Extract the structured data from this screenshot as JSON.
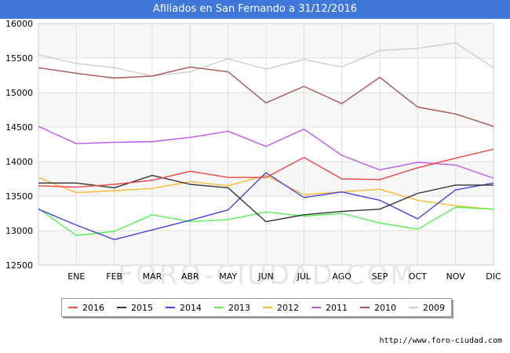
{
  "chart_data": {
    "type": "line",
    "title": "Afiliados en San Fernando a 31/12/2016",
    "xlabel": "",
    "ylabel": "",
    "categories": [
      "",
      "ENE",
      "FEB",
      "MAR",
      "ABR",
      "MAY",
      "JUN",
      "JUL",
      "AGO",
      "SEP",
      "OCT",
      "NOV",
      "DIC"
    ],
    "ylim": [
      12500,
      16000
    ],
    "yticks": [
      12500,
      13000,
      13500,
      14000,
      14500,
      15000,
      15500,
      16000
    ],
    "grid": true,
    "legend_position": "bottom",
    "series": [
      {
        "name": "2016",
        "color": "#ee4444",
        "values": [
          13650,
          13630,
          13670,
          13730,
          13860,
          13770,
          13770,
          14060,
          13750,
          13740,
          13910,
          14050,
          14180
        ]
      },
      {
        "name": "2015",
        "color": "#333333",
        "values": [
          13690,
          13690,
          13620,
          13800,
          13670,
          13620,
          13130,
          13230,
          13280,
          13310,
          13540,
          13660,
          13660
        ]
      },
      {
        "name": "2014",
        "color": "#4444dd",
        "values": [
          13310,
          13080,
          12870,
          13010,
          13150,
          13300,
          13840,
          13480,
          13560,
          13440,
          13170,
          13590,
          13690
        ]
      },
      {
        "name": "2013",
        "color": "#55ee55",
        "values": [
          13320,
          12930,
          12990,
          13230,
          13130,
          13160,
          13270,
          13210,
          13250,
          13110,
          13020,
          13340,
          13310
        ]
      },
      {
        "name": "2012",
        "color": "#ffb733",
        "values": [
          13770,
          13550,
          13580,
          13610,
          13710,
          13650,
          13800,
          13520,
          13560,
          13600,
          13440,
          13360,
          13310
        ]
      },
      {
        "name": "2011",
        "color": "#bb55ee",
        "values": [
          14510,
          14260,
          14280,
          14290,
          14350,
          14440,
          14220,
          14470,
          14090,
          13880,
          13990,
          13950,
          13760
        ]
      },
      {
        "name": "2010",
        "color": "#aa5555",
        "values": [
          15360,
          15280,
          15210,
          15240,
          15370,
          15300,
          14850,
          15090,
          14840,
          15220,
          14790,
          14690,
          14510
        ]
      },
      {
        "name": "2009",
        "color": "#cccccc",
        "values": [
          15550,
          15420,
          15360,
          15240,
          15300,
          15490,
          15340,
          15480,
          15370,
          15610,
          15640,
          15720,
          15360
        ]
      }
    ],
    "watermark": "FORO-CIUDAD.COM"
  },
  "source_url": "http://www.foro-ciudad.com"
}
